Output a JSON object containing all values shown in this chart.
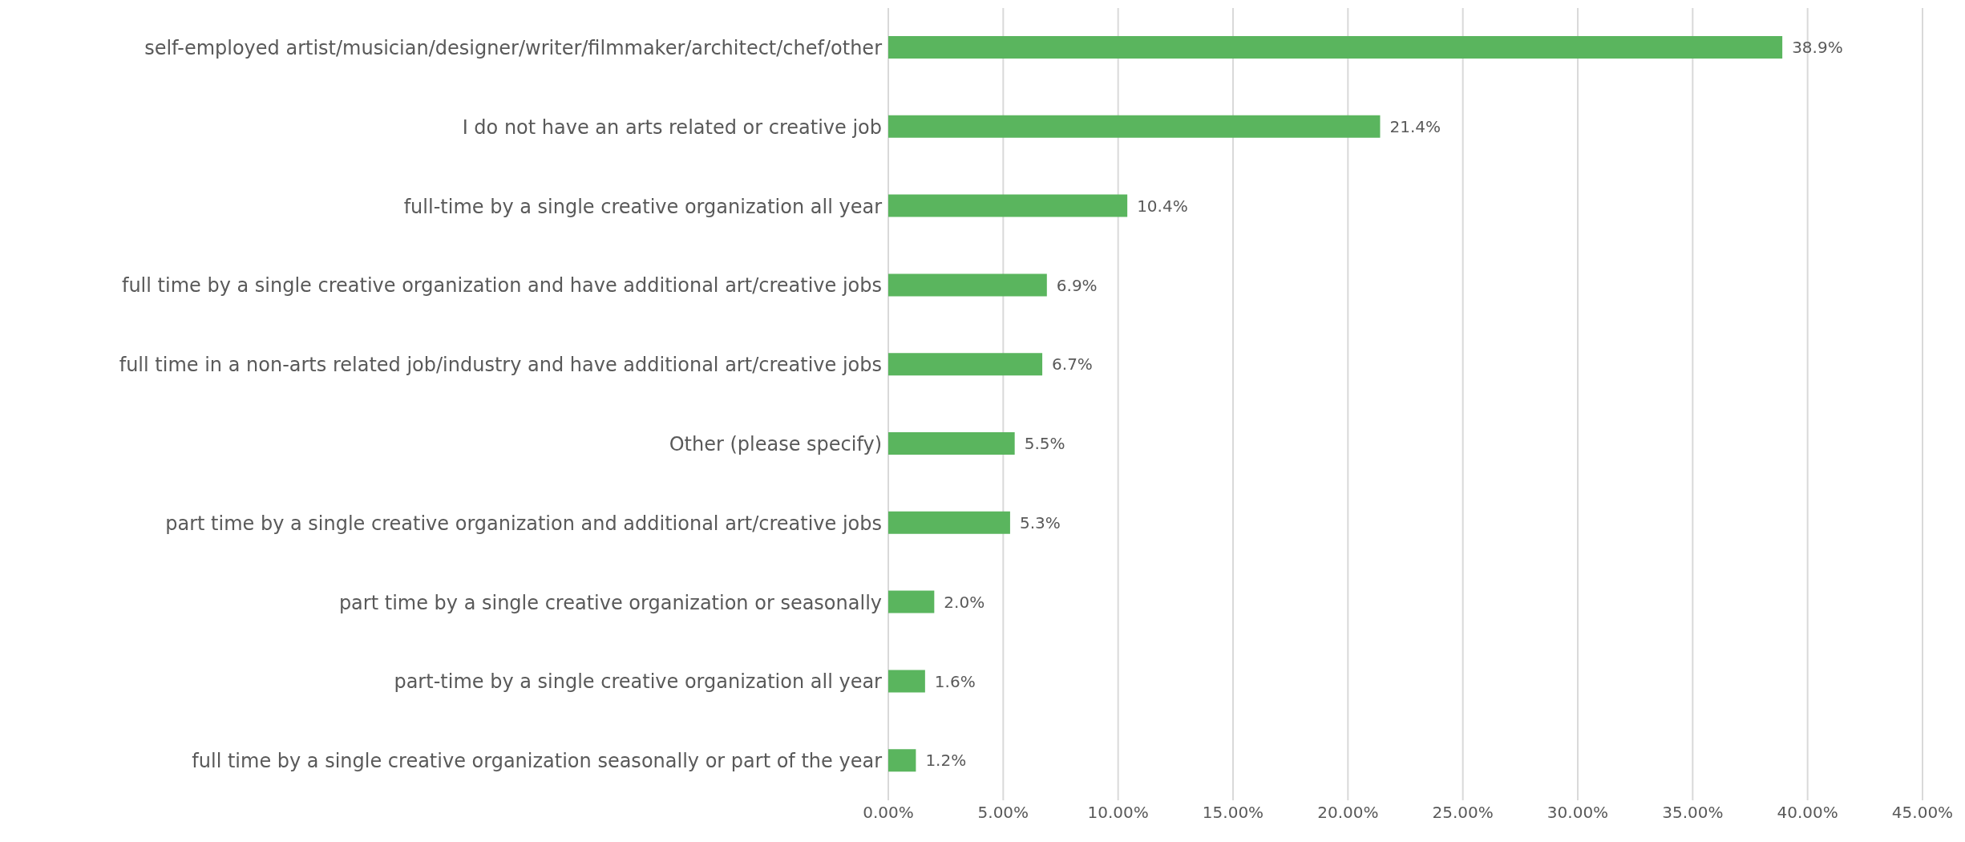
{
  "chart_data": {
    "type": "bar",
    "orientation": "horizontal",
    "categories": [
      "self-employed artist/musician/designer/writer/filmmaker/architect/chef/other",
      "I do not have an arts related or creative job",
      "full-time by a single creative organization all year",
      "full time by a single creative organization and have additional art/creative jobs",
      "full time in a non-arts related job/industry and have additional art/creative jobs",
      "Other (please specify)",
      "part time by a single creative organization and additional art/creative jobs",
      "part time by a single creative organization or seasonally",
      "part-time by a single creative organization all year",
      "full time by a single creative organization seasonally or part of the year"
    ],
    "values": [
      38.9,
      21.4,
      10.4,
      6.9,
      6.7,
      5.5,
      5.3,
      2.0,
      1.6,
      1.2
    ],
    "value_labels": [
      "38.9%",
      "21.4%",
      "10.4%",
      "6.9%",
      "6.7%",
      "5.5%",
      "5.3%",
      "2.0%",
      "1.6%",
      "1.2%"
    ],
    "color": "#5ab55e",
    "xlim": [
      0,
      45
    ],
    "xticks": [
      {
        "value": 0,
        "label": "0.00%"
      },
      {
        "value": 5,
        "label": "5.00%"
      },
      {
        "value": 10,
        "label": "10.00%"
      },
      {
        "value": 15,
        "label": "15.00%"
      },
      {
        "value": 20,
        "label": "20.00%"
      },
      {
        "value": 25,
        "label": "25.00%"
      },
      {
        "value": 30,
        "label": "30.00%"
      },
      {
        "value": 35,
        "label": "35.00%"
      },
      {
        "value": 40,
        "label": "40.00%"
      },
      {
        "value": 45,
        "label": "45.00%"
      }
    ],
    "grid": "x"
  }
}
